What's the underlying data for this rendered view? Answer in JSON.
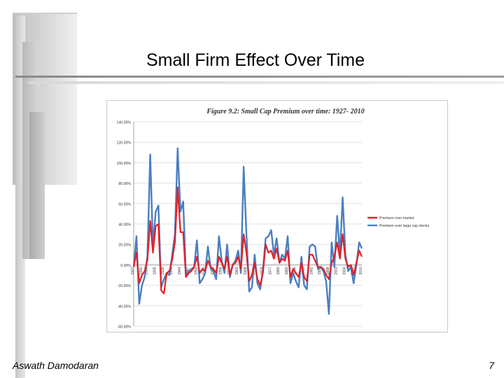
{
  "slide": {
    "title": "Small Firm Effect Over Time",
    "author": "Aswath Damodaran",
    "page_number": "7"
  },
  "colors": {
    "series_red": "#e0202a",
    "series_blue": "#4a7fbf"
  },
  "chart_data": {
    "type": "line",
    "title": "Figure 9.2: Small Cap Premium over time: 1927- 2010",
    "ylim": [
      -60,
      140
    ],
    "y_ticks": [
      "140.00%",
      "120.00%",
      "100.00%",
      "80.00%",
      "60.00%",
      "40.00%",
      "20.00%",
      "0.00%",
      "-20.00%",
      "-40.00%",
      "-60.00%"
    ],
    "y_tick_values": [
      140,
      120,
      100,
      80,
      60,
      40,
      20,
      0,
      -20,
      -40,
      -60
    ],
    "x_tick_labels": [
      "1927",
      "1930",
      "1932",
      "1935",
      "1938",
      "1941",
      "1944",
      "1947",
      "1950",
      "1953",
      "1956",
      "1959",
      "1962",
      "1965",
      "1968",
      "1971",
      "1974",
      "1977",
      "1980",
      "1983",
      "1986",
      "1989",
      "1992",
      "1995",
      "1998",
      "2001",
      "2004",
      "2007",
      "2010"
    ],
    "x_tick_values": [
      1927,
      1930,
      1932,
      1935,
      1938,
      1941,
      1944,
      1947,
      1950,
      1953,
      1956,
      1959,
      1962,
      1965,
      1968,
      1971,
      1974,
      1977,
      1980,
      1983,
      1986,
      1989,
      1992,
      1995,
      1998,
      2001,
      2004,
      2007,
      2010
    ],
    "x_range": [
      1927,
      2010
    ],
    "legend": "right",
    "series": [
      {
        "name": "Premium over market",
        "color": "#e0202a",
        "points": [
          [
            1927,
            -2
          ],
          [
            1928,
            12
          ],
          [
            1929,
            -18
          ],
          [
            1930,
            -10
          ],
          [
            1931,
            -6
          ],
          [
            1932,
            5
          ],
          [
            1933,
            43
          ],
          [
            1934,
            12
          ],
          [
            1935,
            38
          ],
          [
            1936,
            40
          ],
          [
            1937,
            -25
          ],
          [
            1938,
            -28
          ],
          [
            1939,
            -8
          ],
          [
            1940,
            -6
          ],
          [
            1941,
            5
          ],
          [
            1942,
            22
          ],
          [
            1943,
            76
          ],
          [
            1944,
            32
          ],
          [
            1945,
            32
          ],
          [
            1946,
            -12
          ],
          [
            1947,
            -8
          ],
          [
            1948,
            -6
          ],
          [
            1949,
            -2
          ],
          [
            1950,
            8
          ],
          [
            1951,
            -8
          ],
          [
            1952,
            -4
          ],
          [
            1953,
            -6
          ],
          [
            1954,
            4
          ],
          [
            1955,
            -2
          ],
          [
            1956,
            -4
          ],
          [
            1957,
            -8
          ],
          [
            1958,
            8
          ],
          [
            1959,
            2
          ],
          [
            1960,
            -4
          ],
          [
            1961,
            8
          ],
          [
            1962,
            -10
          ],
          [
            1963,
            0
          ],
          [
            1964,
            2
          ],
          [
            1965,
            8
          ],
          [
            1966,
            -4
          ],
          [
            1967,
            30
          ],
          [
            1968,
            12
          ],
          [
            1969,
            -16
          ],
          [
            1970,
            -10
          ],
          [
            1971,
            2
          ],
          [
            1972,
            -14
          ],
          [
            1973,
            -20
          ],
          [
            1974,
            -8
          ],
          [
            1975,
            20
          ],
          [
            1976,
            12
          ],
          [
            1977,
            14
          ],
          [
            1978,
            6
          ],
          [
            1979,
            16
          ],
          [
            1980,
            2
          ],
          [
            1981,
            6
          ],
          [
            1982,
            4
          ],
          [
            1983,
            14
          ],
          [
            1984,
            -12
          ],
          [
            1985,
            -4
          ],
          [
            1986,
            -8
          ],
          [
            1987,
            -12
          ],
          [
            1988,
            2
          ],
          [
            1989,
            -12
          ],
          [
            1990,
            -16
          ],
          [
            1991,
            10
          ],
          [
            1992,
            10
          ],
          [
            1993,
            4
          ],
          [
            1994,
            -2
          ],
          [
            1995,
            -2
          ],
          [
            1996,
            -4
          ],
          [
            1997,
            -10
          ],
          [
            1998,
            -14
          ],
          [
            1999,
            2
          ],
          [
            2000,
            8
          ],
          [
            2001,
            22
          ],
          [
            2002,
            6
          ],
          [
            2003,
            30
          ],
          [
            2004,
            6
          ],
          [
            2005,
            -2
          ],
          [
            2006,
            0
          ],
          [
            2007,
            -10
          ],
          [
            2008,
            2
          ],
          [
            2009,
            14
          ],
          [
            2010,
            8
          ]
        ]
      },
      {
        "name": "Premium over large cap stocks",
        "color": "#4a7fbf",
        "points": [
          [
            1927,
            -2
          ],
          [
            1928,
            28
          ],
          [
            1929,
            -38
          ],
          [
            1930,
            -20
          ],
          [
            1931,
            -12
          ],
          [
            1932,
            8
          ],
          [
            1933,
            108
          ],
          [
            1934,
            18
          ],
          [
            1935,
            52
          ],
          [
            1936,
            58
          ],
          [
            1937,
            -22
          ],
          [
            1938,
            -14
          ],
          [
            1939,
            -8
          ],
          [
            1940,
            -10
          ],
          [
            1941,
            10
          ],
          [
            1942,
            30
          ],
          [
            1943,
            114
          ],
          [
            1944,
            52
          ],
          [
            1945,
            62
          ],
          [
            1946,
            -10
          ],
          [
            1947,
            -6
          ],
          [
            1948,
            -4
          ],
          [
            1949,
            -2
          ],
          [
            1950,
            24
          ],
          [
            1951,
            -18
          ],
          [
            1952,
            -14
          ],
          [
            1953,
            -8
          ],
          [
            1954,
            18
          ],
          [
            1955,
            -4
          ],
          [
            1956,
            -6
          ],
          [
            1957,
            -14
          ],
          [
            1958,
            28
          ],
          [
            1959,
            4
          ],
          [
            1960,
            -8
          ],
          [
            1961,
            20
          ],
          [
            1962,
            -12
          ],
          [
            1963,
            0
          ],
          [
            1964,
            4
          ],
          [
            1965,
            14
          ],
          [
            1966,
            -8
          ],
          [
            1967,
            96
          ],
          [
            1968,
            30
          ],
          [
            1969,
            -26
          ],
          [
            1970,
            -22
          ],
          [
            1971,
            10
          ],
          [
            1972,
            -18
          ],
          [
            1973,
            -24
          ],
          [
            1974,
            -6
          ],
          [
            1975,
            26
          ],
          [
            1976,
            28
          ],
          [
            1977,
            34
          ],
          [
            1978,
            10
          ],
          [
            1979,
            26
          ],
          [
            1980,
            2
          ],
          [
            1981,
            10
          ],
          [
            1982,
            6
          ],
          [
            1983,
            28
          ],
          [
            1984,
            -18
          ],
          [
            1985,
            -8
          ],
          [
            1986,
            -16
          ],
          [
            1987,
            -22
          ],
          [
            1988,
            8
          ],
          [
            1989,
            -20
          ],
          [
            1990,
            -24
          ],
          [
            1991,
            18
          ],
          [
            1992,
            20
          ],
          [
            1993,
            18
          ],
          [
            1994,
            -4
          ],
          [
            1995,
            -2
          ],
          [
            1996,
            -6
          ],
          [
            1997,
            -16
          ],
          [
            1998,
            -48
          ],
          [
            1999,
            22
          ],
          [
            2000,
            -2
          ],
          [
            2001,
            48
          ],
          [
            2002,
            10
          ],
          [
            2003,
            66
          ],
          [
            2004,
            10
          ],
          [
            2005,
            -6
          ],
          [
            2006,
            -2
          ],
          [
            2007,
            -18
          ],
          [
            2008,
            0
          ],
          [
            2009,
            22
          ],
          [
            2010,
            16
          ]
        ]
      }
    ]
  }
}
